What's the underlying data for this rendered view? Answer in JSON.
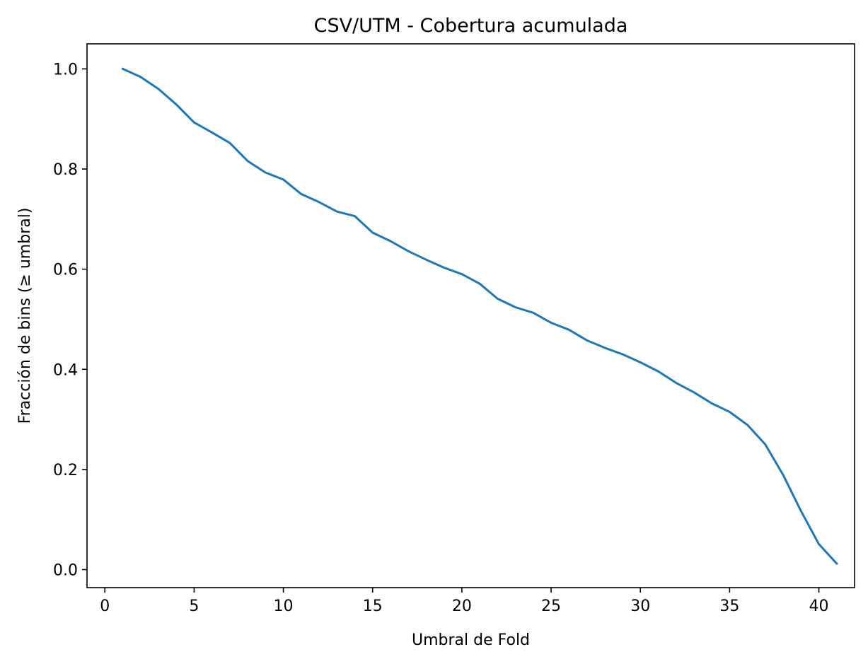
{
  "chart_data": {
    "type": "line",
    "title": "CSV/UTM - Cobertura acumulada",
    "xlabel": "Umbral de Fold",
    "ylabel": "Fracción de bins (≥ umbral)",
    "xlim": [
      -1,
      42
    ],
    "ylim": [
      -0.036,
      1.05
    ],
    "xticks": [
      0,
      5,
      10,
      15,
      20,
      25,
      30,
      35,
      40
    ],
    "xtick_labels": [
      "0",
      "5",
      "10",
      "15",
      "20",
      "25",
      "30",
      "35",
      "40"
    ],
    "yticks": [
      0.0,
      0.2,
      0.4,
      0.6,
      0.8,
      1.0
    ],
    "ytick_labels": [
      "0.0",
      "0.2",
      "0.4",
      "0.6",
      "0.8",
      "1.0"
    ],
    "grid": false,
    "series": [
      {
        "color": "#1f77b4",
        "x": [
          1,
          2,
          3,
          4,
          5,
          6,
          7,
          8,
          9,
          10,
          11,
          12,
          13,
          14,
          15,
          16,
          17,
          18,
          19,
          20,
          21,
          22,
          23,
          24,
          25,
          26,
          27,
          28,
          29,
          30,
          31,
          32,
          33,
          34,
          35,
          36,
          37,
          38,
          39,
          40,
          41
        ],
        "y": [
          1.0,
          0.984,
          0.96,
          0.929,
          0.893,
          0.873,
          0.852,
          0.816,
          0.793,
          0.779,
          0.75,
          0.734,
          0.715,
          0.706,
          0.673,
          0.656,
          0.636,
          0.619,
          0.603,
          0.59,
          0.571,
          0.541,
          0.524,
          0.513,
          0.493,
          0.479,
          0.458,
          0.443,
          0.43,
          0.414,
          0.396,
          0.373,
          0.354,
          0.332,
          0.315,
          0.289,
          0.25,
          0.189,
          0.117,
          0.051,
          0.012
        ]
      }
    ]
  }
}
